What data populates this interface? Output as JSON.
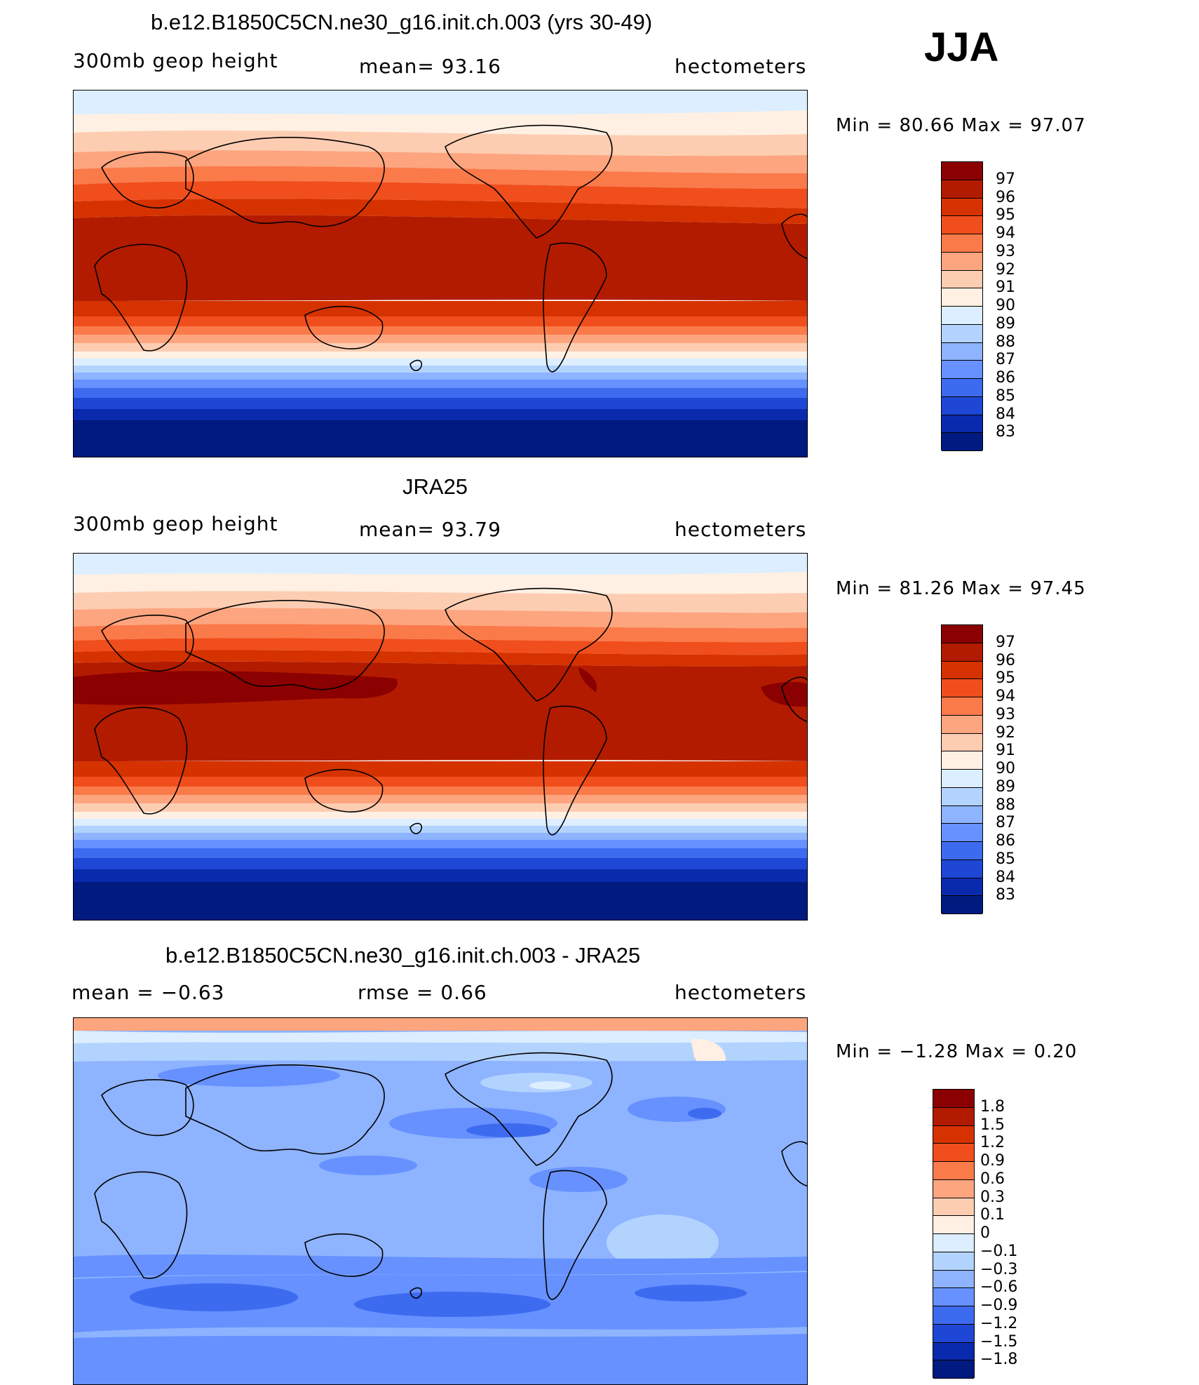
{
  "season": "JJA",
  "panels": [
    {
      "id": "model",
      "title": "b.e12.B1850C5CN.ne30_g16.init.ch.003 (yrs 30-49)",
      "left_label": "300mb  geop  height",
      "center_label": "mean=   93.16",
      "right_label": "hectometers",
      "minmax": "Min  =    80.66  Max  =    97.07",
      "colorbar_labels": [
        "97",
        "96",
        "95",
        "94",
        "93",
        "92",
        "91",
        "90",
        "89",
        "88",
        "87",
        "86",
        "85",
        "84",
        "83"
      ],
      "colors": [
        "#8b0000",
        "#b31b00",
        "#d63200",
        "#f04e1c",
        "#fb7a4a",
        "#fca57f",
        "#fdcdb2",
        "#fff0e3",
        "#dceeff",
        "#b3d3ff",
        "#8eb3ff",
        "#6691ff",
        "#3d6bf0",
        "#1f47d6",
        "#0a2aae",
        "#001a80"
      ]
    },
    {
      "id": "obs",
      "title": "JRA25",
      "left_label": "300mb  geop  height",
      "center_label": "mean=   93.79",
      "right_label": "hectometers",
      "minmax": "Min  =    81.26  Max  =    97.45",
      "colorbar_labels": [
        "97",
        "96",
        "95",
        "94",
        "93",
        "92",
        "91",
        "90",
        "89",
        "88",
        "87",
        "86",
        "85",
        "84",
        "83"
      ],
      "colors": [
        "#8b0000",
        "#b31b00",
        "#d63200",
        "#f04e1c",
        "#fb7a4a",
        "#fca57f",
        "#fdcdb2",
        "#fff0e3",
        "#dceeff",
        "#b3d3ff",
        "#8eb3ff",
        "#6691ff",
        "#3d6bf0",
        "#1f47d6",
        "#0a2aae",
        "#001a80"
      ]
    },
    {
      "id": "diff",
      "title": "b.e12.B1850C5CN.ne30_g16.init.ch.003 - JRA25",
      "left_label": "mean  =    −0.63",
      "center_label": "rmse  =     0.66",
      "right_label": "hectometers",
      "minmax": "Min  =    −1.28  Max  =     0.20",
      "colorbar_labels": [
        "1.8",
        "1.5",
        "1.2",
        "0.9",
        "0.6",
        "0.3",
        "0.1",
        "0",
        "−0.1",
        "−0.3",
        "−0.6",
        "−0.9",
        "−1.2",
        "−1.5",
        "−1.8"
      ],
      "colors": [
        "#8b0000",
        "#b31b00",
        "#d63200",
        "#f04e1c",
        "#fb7a4a",
        "#fca57f",
        "#fdcdb2",
        "#fff0e3",
        "#dceeff",
        "#b3d3ff",
        "#8eb3ff",
        "#6691ff",
        "#3d6bf0",
        "#1f47d6",
        "#0a2aae",
        "#001a80"
      ]
    }
  ]
}
